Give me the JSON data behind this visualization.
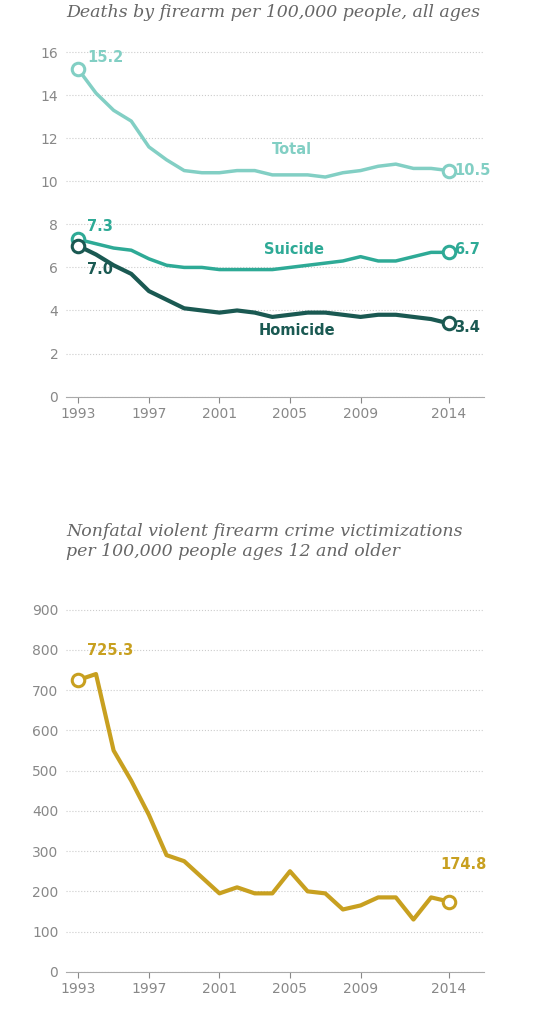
{
  "chart1_title": "Deaths by firearm per 100,000 people, all ages",
  "chart2_title": "Nonfatal violent firearm crime victimizations\nper 100,000 people ages 12 and older",
  "total_years": [
    1993,
    1994,
    1995,
    1996,
    1997,
    1998,
    1999,
    2000,
    2001,
    2002,
    2003,
    2004,
    2005,
    2006,
    2007,
    2008,
    2009,
    2010,
    2011,
    2012,
    2013,
    2014
  ],
  "total_values": [
    15.2,
    14.1,
    13.3,
    12.8,
    11.6,
    11.0,
    10.5,
    10.4,
    10.4,
    10.5,
    10.5,
    10.3,
    10.3,
    10.3,
    10.2,
    10.4,
    10.5,
    10.7,
    10.8,
    10.6,
    10.6,
    10.5
  ],
  "suicide_years": [
    1993,
    1994,
    1995,
    1996,
    1997,
    1998,
    1999,
    2000,
    2001,
    2002,
    2003,
    2004,
    2005,
    2006,
    2007,
    2008,
    2009,
    2010,
    2011,
    2012,
    2013,
    2014
  ],
  "suicide_values": [
    7.3,
    7.1,
    6.9,
    6.8,
    6.4,
    6.1,
    6.0,
    6.0,
    5.9,
    5.9,
    5.9,
    5.9,
    6.0,
    6.1,
    6.2,
    6.3,
    6.5,
    6.3,
    6.3,
    6.5,
    6.7,
    6.7
  ],
  "homicide_years": [
    1993,
    1994,
    1995,
    1996,
    1997,
    1998,
    1999,
    2000,
    2001,
    2002,
    2003,
    2004,
    2005,
    2006,
    2007,
    2008,
    2009,
    2010,
    2011,
    2012,
    2013,
    2014
  ],
  "homicide_values": [
    7.0,
    6.6,
    6.1,
    5.7,
    4.9,
    4.5,
    4.1,
    4.0,
    3.9,
    4.0,
    3.9,
    3.7,
    3.8,
    3.9,
    3.9,
    3.8,
    3.7,
    3.8,
    3.8,
    3.7,
    3.6,
    3.4
  ],
  "nonfatal_years": [
    1993,
    1994,
    1995,
    1996,
    1997,
    1998,
    1999,
    2000,
    2001,
    2002,
    2003,
    2004,
    2005,
    2006,
    2007,
    2008,
    2009,
    2010,
    2011,
    2012,
    2013,
    2014
  ],
  "nonfatal_values": [
    725.3,
    740.0,
    550.0,
    475.0,
    390.0,
    290.0,
    275.0,
    235.0,
    195.0,
    210.0,
    195.0,
    195.0,
    250.0,
    200.0,
    195.0,
    155.0,
    165.0,
    185.0,
    185.0,
    130.0,
    185.0,
    174.8
  ],
  "color_total": "#82cfc4",
  "color_suicide": "#2eaa96",
  "color_homicide": "#1a5952",
  "color_nonfatal": "#c8a020",
  "color_grid": "#cccccc",
  "color_title": "#666666",
  "bg_color": "#ffffff",
  "color_axis": "#aaaaaa",
  "color_tick": "#888888",
  "chart1_ylim": [
    0,
    17
  ],
  "chart1_yticks": [
    0,
    2,
    4,
    6,
    8,
    10,
    12,
    14,
    16
  ],
  "chart2_ylim": [
    0,
    1000
  ],
  "chart2_yticks": [
    0,
    100,
    200,
    300,
    400,
    500,
    600,
    700,
    800,
    900
  ],
  "xticks": [
    1993,
    1997,
    2001,
    2005,
    2009,
    2014
  ]
}
